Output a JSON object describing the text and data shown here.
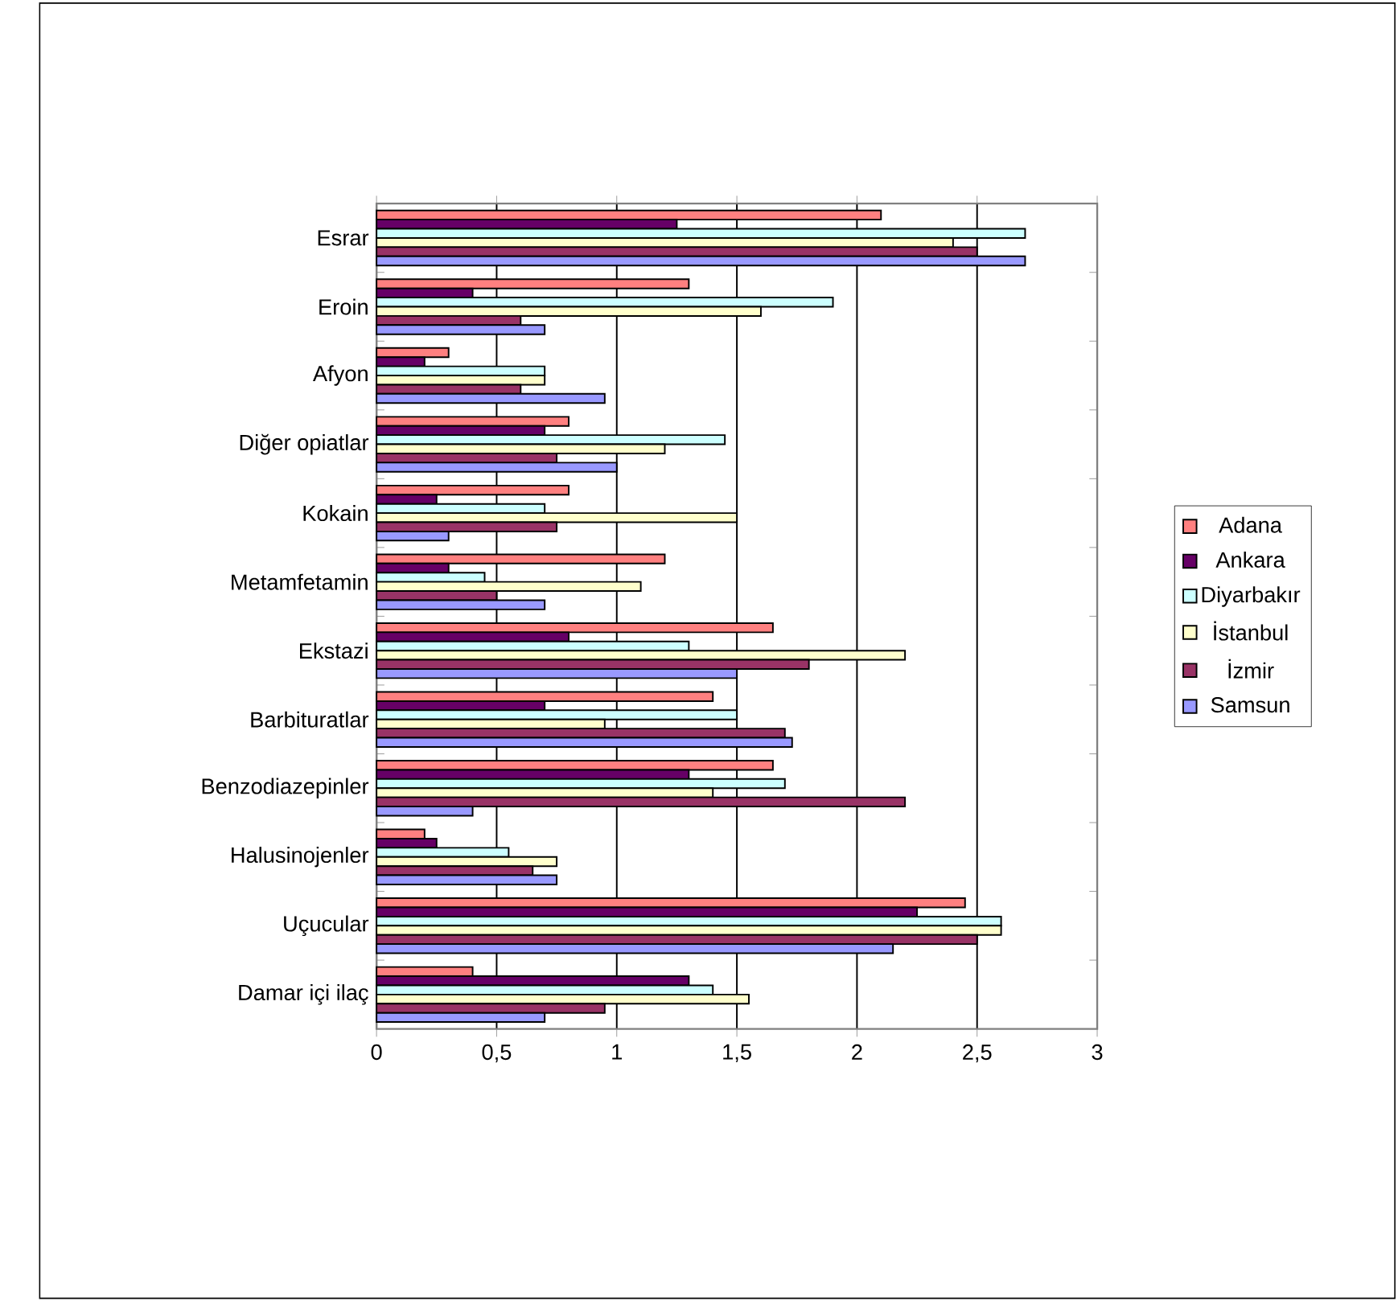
{
  "chart_data": {
    "type": "bar",
    "orientation": "horizontal",
    "categories": [
      "Esrar",
      "Eroin",
      "Afyon",
      "Diğer opiatlar",
      "Kokain",
      "Metamfetamin",
      "Ekstazi",
      "Barbituratlar",
      "Benzodiazepinler",
      "Halusinojenler",
      "Uçucular",
      "Damar içi ilaç"
    ],
    "series": [
      {
        "name": "Adana",
        "color": "#ff8080",
        "values": [
          2.1,
          1.3,
          0.3,
          0.8,
          0.8,
          1.2,
          1.65,
          1.4,
          1.65,
          0.2,
          2.45,
          0.4
        ]
      },
      {
        "name": "Ankara",
        "color": "#660066",
        "values": [
          1.25,
          0.4,
          0.2,
          0.7,
          0.25,
          0.3,
          0.8,
          0.7,
          1.3,
          0.25,
          2.25,
          1.3
        ]
      },
      {
        "name": "Diyarbakır",
        "color": "#ccffff",
        "values": [
          2.7,
          1.9,
          0.7,
          1.45,
          0.7,
          0.45,
          1.3,
          1.5,
          1.7,
          0.55,
          2.6,
          1.4
        ]
      },
      {
        "name": "İstanbul",
        "color": "#ffffcc",
        "values": [
          2.4,
          1.6,
          0.7,
          1.2,
          1.5,
          1.1,
          2.2,
          0.95,
          1.4,
          0.75,
          2.6,
          1.55
        ]
      },
      {
        "name": "İzmir",
        "color": "#993366",
        "values": [
          2.5,
          0.6,
          0.6,
          0.75,
          0.75,
          0.5,
          1.8,
          1.7,
          2.2,
          0.65,
          2.5,
          0.95
        ]
      },
      {
        "name": "Samsun",
        "color": "#9999ff",
        "values": [
          2.7,
          0.7,
          0.95,
          1.0,
          0.3,
          0.7,
          1.5,
          1.73,
          0.4,
          0.75,
          2.15,
          0.7
        ]
      }
    ],
    "xlim": [
      0,
      3
    ],
    "xticks": [
      0,
      {
        "value": 0.5,
        "label": "0,5"
      },
      1,
      {
        "value": 1.5,
        "label": "1,5"
      },
      2,
      {
        "value": 2.5,
        "label": "2,5"
      },
      3
    ],
    "grid": "x",
    "legend": "right"
  }
}
